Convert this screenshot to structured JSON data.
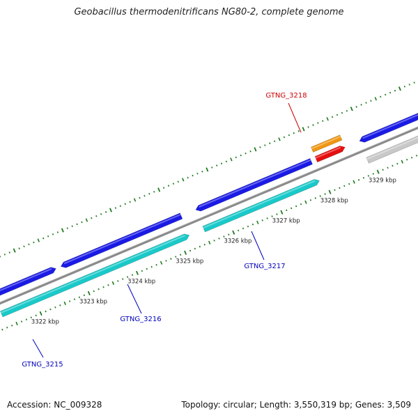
{
  "title": "Geobacillus thermodenitrificans NG80-2, complete genome",
  "footer": {
    "accession": "Accession: NC_009328",
    "topology": "Topology: circular; Length: 3,550,319 bp; Genes: 3,509"
  },
  "colors": {
    "backbone": "#8a8a8a",
    "tick": "#1f7a1f",
    "gene_forward": "#1a1ae6",
    "gene_reverse": "#19c9c9",
    "highlight_forward": "#f0960f",
    "highlight_reverse": "#e60f0f",
    "gray_gene": "#c8c8c8",
    "label_blue": "#0000bb",
    "label_red": "#cc0000"
  },
  "scale_labels": [
    {
      "kbp": 3322,
      "text": "3322 kbp"
    },
    {
      "kbp": 3323,
      "text": "3323 kbp"
    },
    {
      "kbp": 3324,
      "text": "3324 kbp"
    },
    {
      "kbp": 3325,
      "text": "3325 kbp"
    },
    {
      "kbp": 3326,
      "text": "3326 kbp"
    },
    {
      "kbp": 3327,
      "text": "3327 kbp"
    },
    {
      "kbp": 3328,
      "text": "3328 kbp"
    },
    {
      "kbp": 3329,
      "text": "3329 kbp"
    }
  ],
  "genes": [
    {
      "id": "g1",
      "track": "forward",
      "start": 3321.3,
      "end": 3322.6,
      "arrow": "right",
      "color": "gene_forward"
    },
    {
      "id": "g2",
      "track": "forward",
      "start": 3322.7,
      "end": 3325.2,
      "arrow": "left",
      "color": "gene_forward"
    },
    {
      "id": "g3",
      "track": "reverse",
      "start": 3321.3,
      "end": 3325.2,
      "arrow": "right",
      "color": "gene_reverse"
    },
    {
      "id": "g4",
      "track": "forward",
      "start": 3325.5,
      "end": 3327.9,
      "arrow": "left",
      "color": "gene_forward"
    },
    {
      "id": "g5",
      "track": "reverse",
      "start": 3325.5,
      "end": 3327.9,
      "arrow": "right",
      "color": "gene_reverse"
    },
    {
      "id": "g6",
      "track": "outer",
      "start": 3328.0,
      "end": 3328.6,
      "arrow": "none",
      "color": "highlight_forward"
    },
    {
      "id": "g7",
      "track": "forward",
      "start": 3328.0,
      "end": 3328.6,
      "arrow": "right",
      "color": "highlight_reverse"
    },
    {
      "id": "g8",
      "track": "forward",
      "start": 3328.9,
      "end": 3330.2,
      "arrow": "left",
      "color": "gene_forward"
    },
    {
      "id": "g9",
      "track": "reverse",
      "start": 3328.9,
      "end": 3330.2,
      "arrow": "none",
      "color": "gray_gene"
    }
  ],
  "gene_labels": [
    {
      "text": "GTNG_3215",
      "color": "label_blue"
    },
    {
      "text": "GTNG_3216",
      "color": "label_blue"
    },
    {
      "text": "GTNG_3217",
      "color": "label_blue"
    },
    {
      "text": "GTNG_3218",
      "color": "label_red"
    }
  ]
}
